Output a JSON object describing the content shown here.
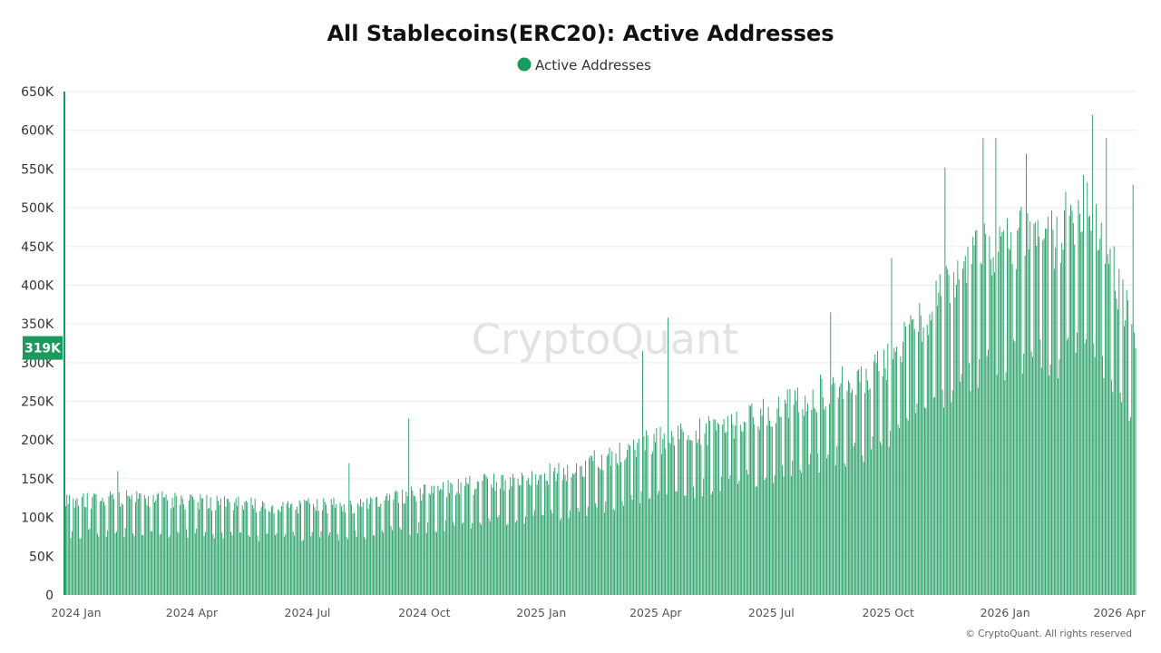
{
  "colors": {
    "series": "#1a9a5c",
    "badge": "#1a9a5c",
    "grid": "#eeeeee",
    "background": "#ffffff"
  },
  "watermark": "CryptoQuant",
  "copyright": "© CryptoQuant. All rights reserved",
  "chart_data": {
    "type": "bar",
    "title": "All Stablecoins(ERC20): Active Addresses",
    "legend": [
      "Active Addresses"
    ],
    "legend_position": "top-center",
    "xlabel": "",
    "ylabel": "",
    "ylim": [
      0,
      650000
    ],
    "y_ticks": [
      0,
      50000,
      100000,
      150000,
      200000,
      250000,
      300000,
      350000,
      400000,
      450000,
      500000,
      550000,
      600000,
      650000
    ],
    "y_tick_labels": [
      "0",
      "50K",
      "100K",
      "150K",
      "200K",
      "250K",
      "300K",
      "350K",
      "400K",
      "450K",
      "500K",
      "550K",
      "600K",
      "650K"
    ],
    "x_start": "2024-01-01",
    "x_end": "2026-04-23",
    "x_ticks": [
      {
        "date": "2024-01-01",
        "label": "2024 Jan"
      },
      {
        "date": "2024-04-01",
        "label": "2024 Apr"
      },
      {
        "date": "2024-07-01",
        "label": "2024 Jul"
      },
      {
        "date": "2024-10-01",
        "label": "2024 Oct"
      },
      {
        "date": "2025-01-01",
        "label": "2025 Jan"
      },
      {
        "date": "2025-04-01",
        "label": "2025 Apr"
      },
      {
        "date": "2025-07-01",
        "label": "2025 Jul"
      },
      {
        "date": "2025-10-01",
        "label": "2025 Oct"
      },
      {
        "date": "2026-01-01",
        "label": "2026 Jan"
      },
      {
        "date": "2026-04-01",
        "label": "2026 Apr"
      }
    ],
    "grid": true,
    "interval": "daily",
    "weekday_base_trend": [
      {
        "date": "2024-01-01",
        "value": 120000
      },
      {
        "date": "2024-03-01",
        "value": 125000
      },
      {
        "date": "2024-06-01",
        "value": 115000
      },
      {
        "date": "2024-08-15",
        "value": 115000
      },
      {
        "date": "2024-10-01",
        "value": 130000
      },
      {
        "date": "2024-12-01",
        "value": 145000
      },
      {
        "date": "2025-02-01",
        "value": 160000
      },
      {
        "date": "2025-04-01",
        "value": 195000
      },
      {
        "date": "2025-06-01",
        "value": 215000
      },
      {
        "date": "2025-08-01",
        "value": 250000
      },
      {
        "date": "2025-10-01",
        "value": 290000
      },
      {
        "date": "2025-11-15",
        "value": 370000
      },
      {
        "date": "2025-12-20",
        "value": 440000
      },
      {
        "date": "2026-01-20",
        "value": 460000
      },
      {
        "date": "2026-02-20",
        "value": 460000
      },
      {
        "date": "2026-03-15",
        "value": 520000
      },
      {
        "date": "2026-04-05",
        "value": 420000
      },
      {
        "date": "2026-04-23",
        "value": 330000
      }
    ],
    "weekend_ratio": 0.66,
    "noise_amplitude": 0.09,
    "notable_peaks": [
      {
        "date": "2024-01-01",
        "value": 650000
      },
      {
        "date": "2024-02-12",
        "value": 160000
      },
      {
        "date": "2024-08-12",
        "value": 170000
      },
      {
        "date": "2024-09-28",
        "value": 228000
      },
      {
        "date": "2025-03-31",
        "value": 315000
      },
      {
        "date": "2025-04-20",
        "value": 358000
      },
      {
        "date": "2025-08-26",
        "value": 365000
      },
      {
        "date": "2025-10-13",
        "value": 435000
      },
      {
        "date": "2025-11-24",
        "value": 552000
      },
      {
        "date": "2025-12-24",
        "value": 590000
      },
      {
        "date": "2026-01-03",
        "value": 590000
      },
      {
        "date": "2026-01-27",
        "value": 570000
      },
      {
        "date": "2026-03-20",
        "value": 620000
      },
      {
        "date": "2026-03-31",
        "value": 590000
      },
      {
        "date": "2026-04-21",
        "value": 530000
      }
    ],
    "latest": {
      "date": "2026-04-23",
      "value": 319000,
      "label": "319K"
    }
  }
}
